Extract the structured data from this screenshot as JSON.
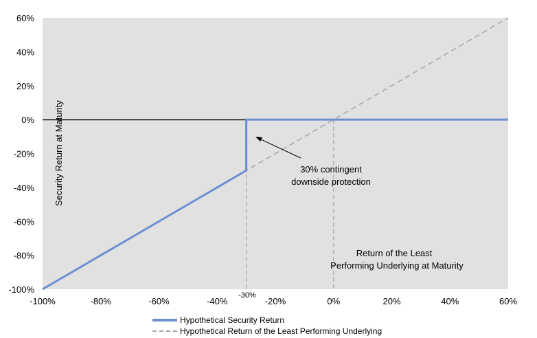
{
  "chart_data": {
    "type": "line",
    "xlim": [
      -100,
      60
    ],
    "ylim": [
      -100,
      60
    ],
    "x_ticks": [
      "-100%",
      "-80%",
      "-60%",
      "-40%",
      "-20%",
      "0%",
      "20%",
      "40%",
      "60%"
    ],
    "y_ticks": [
      "60%",
      "40%",
      "20%",
      "0%",
      "-20%",
      "-40%",
      "-60%",
      "-80%",
      "-100%"
    ],
    "ylabel": "Security Return at Maturity",
    "xlabel_line1": "Return of the Least",
    "xlabel_line2": "Performing Underlying at Maturity",
    "extra_tick_label": "-30%",
    "annotation_line1": "30% contingent",
    "annotation_line2": "downside protection",
    "grid": false,
    "legend_position": "bottom",
    "series": [
      {
        "name": "Hypothetical Security Return",
        "style": "solid",
        "color": "#6b8fd1",
        "points": [
          [
            -100,
            -100
          ],
          [
            -30,
            -30
          ],
          [
            -30,
            0
          ],
          [
            60,
            0
          ]
        ]
      },
      {
        "name": "Hypothetical Return of the Least Performing Underlying",
        "style": "dashed",
        "color": "#a6a6a6",
        "points": [
          [
            -100,
            -100
          ],
          [
            60,
            60
          ]
        ]
      }
    ]
  }
}
